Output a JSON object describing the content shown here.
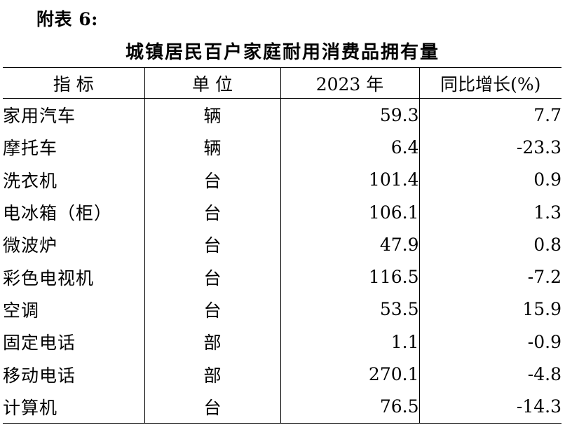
{
  "appendix_label": "附表 6:",
  "title": "城镇居民百户家庭耐用消费品拥有量",
  "headers": {
    "indicator": "指 标",
    "unit": "单 位",
    "year": "2023 年",
    "yoy": "同比增长(%)"
  },
  "rows": [
    {
      "name": "家用汽车",
      "unit": "辆",
      "value": "59.3",
      "yoy": "7.7"
    },
    {
      "name": "摩托车",
      "unit": "辆",
      "value": "6.4",
      "yoy": "-23.3"
    },
    {
      "name": "洗衣机",
      "unit": "台",
      "value": "101.4",
      "yoy": "0.9"
    },
    {
      "name": "电冰箱（柜）",
      "unit": "台",
      "value": "106.1",
      "yoy": "1.3"
    },
    {
      "name": "微波炉",
      "unit": "台",
      "value": "47.9",
      "yoy": "0.8"
    },
    {
      "name": "彩色电视机",
      "unit": "台",
      "value": "116.5",
      "yoy": "-7.2"
    },
    {
      "name": "空调",
      "unit": "台",
      "value": "53.5",
      "yoy": "15.9"
    },
    {
      "name": "固定电话",
      "unit": "部",
      "value": "1.1",
      "yoy": "-0.9"
    },
    {
      "name": "移动电话",
      "unit": "部",
      "value": "270.1",
      "yoy": "-4.8"
    },
    {
      "name": "计算机",
      "unit": "台",
      "value": "76.5",
      "yoy": "-14.3"
    }
  ]
}
